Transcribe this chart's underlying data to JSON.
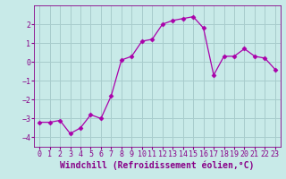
{
  "x": [
    0,
    1,
    2,
    3,
    4,
    5,
    6,
    7,
    8,
    9,
    10,
    11,
    12,
    13,
    14,
    15,
    16,
    17,
    18,
    19,
    20,
    21,
    22,
    23
  ],
  "y": [
    -3.2,
    -3.2,
    -3.1,
    -3.8,
    -3.5,
    -2.8,
    -3.0,
    -1.8,
    0.1,
    0.3,
    1.1,
    1.2,
    2.0,
    2.2,
    2.3,
    2.4,
    1.8,
    -0.7,
    0.3,
    0.3,
    0.7,
    0.3,
    0.2,
    -0.4
  ],
  "line_color": "#AA00AA",
  "marker": "D",
  "marker_size": 2.5,
  "bg_color": "#C8EAE8",
  "grid_color": "#A8CCCC",
  "xlabel": "Windchill (Refroidissement éolien,°C)",
  "text_color": "#880088",
  "ylim": [
    -4.5,
    3.0
  ],
  "xlim": [
    -0.5,
    23.5
  ],
  "yticks": [
    -4,
    -3,
    -2,
    -1,
    0,
    1,
    2
  ],
  "xticks": [
    0,
    1,
    2,
    3,
    4,
    5,
    6,
    7,
    8,
    9,
    10,
    11,
    12,
    13,
    14,
    15,
    16,
    17,
    18,
    19,
    20,
    21,
    22,
    23
  ],
  "tick_label_fontsize": 6.0,
  "xlabel_fontsize": 7.0
}
